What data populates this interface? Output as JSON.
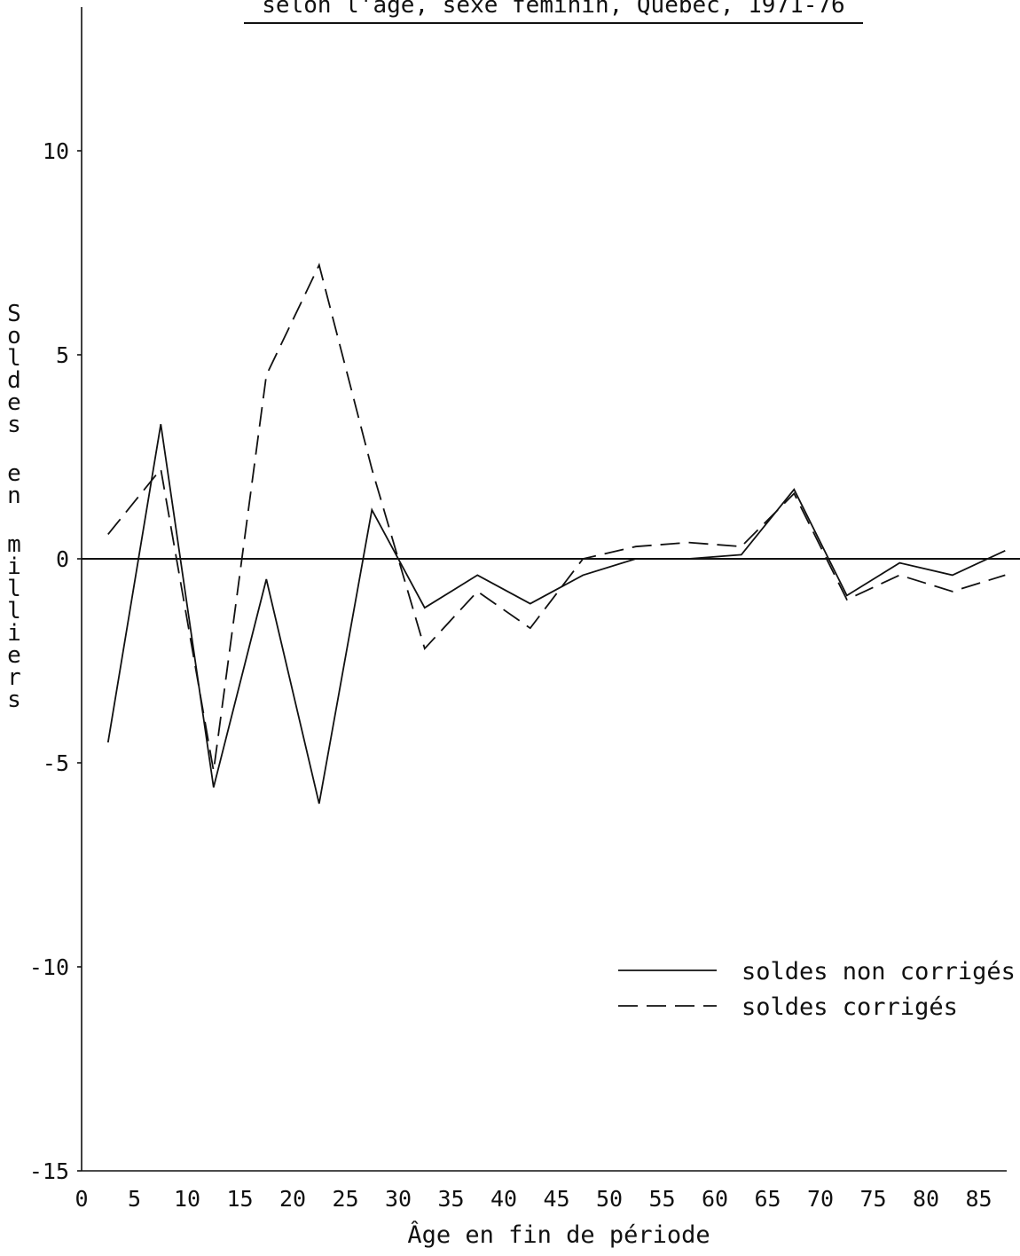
{
  "chart_data": {
    "type": "line",
    "title": "selon l'âge, sexe féminin, Québec, 1971-76",
    "xlabel": "Âge en fin de période",
    "ylabel": "Soldes en milliers",
    "xlim": [
      0,
      88
    ],
    "ylim": [
      -15,
      13.5
    ],
    "x_ticks": [
      0,
      5,
      10,
      15,
      20,
      25,
      30,
      35,
      40,
      45,
      50,
      55,
      60,
      65,
      70,
      75,
      80,
      85
    ],
    "y_ticks": [
      10,
      5,
      0,
      -5,
      -10,
      -15
    ],
    "x": [
      2.5,
      7.5,
      12.5,
      17.5,
      22.5,
      27.5,
      32.5,
      37.5,
      42.5,
      47.5,
      52.5,
      57.5,
      62.5,
      67.5,
      72.5,
      77.5,
      82.5,
      87.5
    ],
    "series": [
      {
        "name": "soldes non corrigés",
        "style": "solid",
        "color": "#111111",
        "values": [
          -4.5,
          3.3,
          -5.6,
          -0.5,
          -6.0,
          1.2,
          -1.2,
          -0.4,
          -1.1,
          -0.4,
          0.0,
          0.0,
          0.1,
          1.7,
          -0.9,
          -0.1,
          -0.4,
          0.2
        ]
      },
      {
        "name": "soldes corrigés",
        "style": "dashed",
        "color": "#111111",
        "values": [
          0.6,
          2.2,
          -5.2,
          4.5,
          7.2,
          2.2,
          -2.2,
          -0.8,
          -1.7,
          0.0,
          0.3,
          0.4,
          0.3,
          1.6,
          -1.0,
          -0.4,
          -0.8,
          -0.4
        ]
      }
    ],
    "grid": false,
    "legend_position": "lower-right"
  }
}
